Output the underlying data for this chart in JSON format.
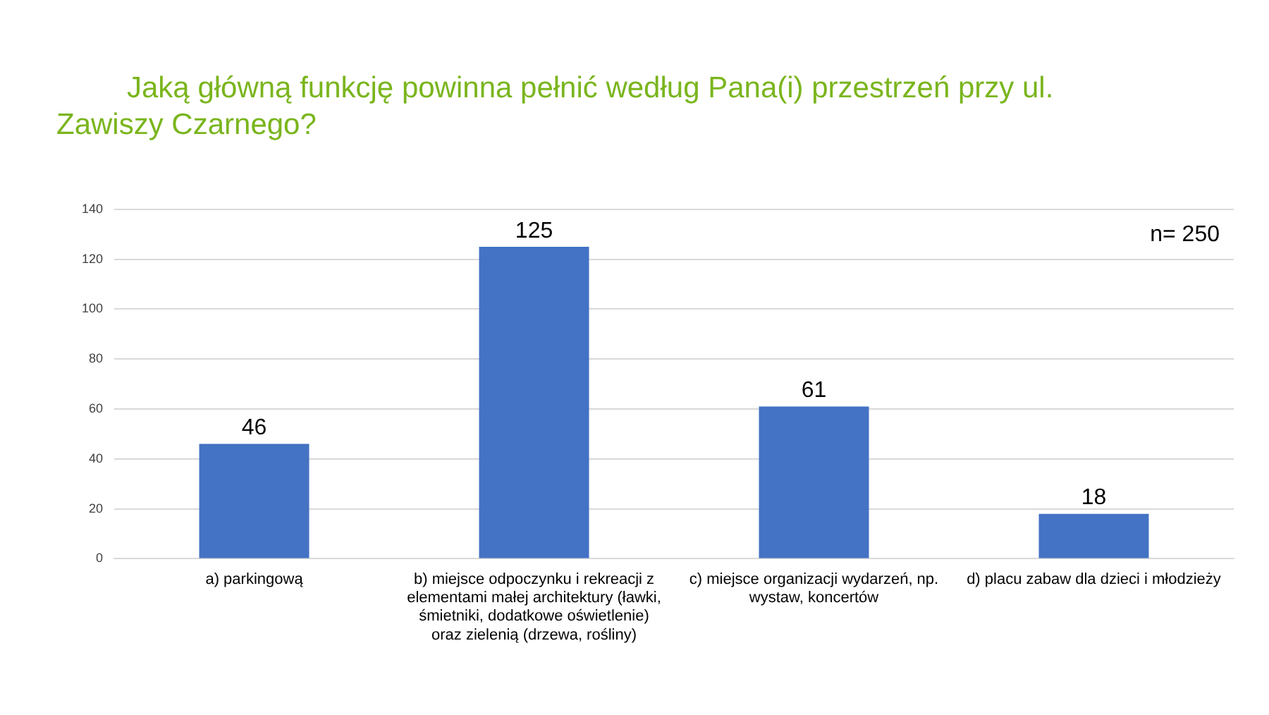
{
  "chart_data": {
    "type": "bar",
    "title": "Jaką główną funkcję powinna pełnić według Pana(i) przestrzeń przy ul. Zawiszy Czarnego?",
    "categories": [
      "a) parkingową",
      "b) miejsce odpoczynku i rekreacji z elementami małej architektury (ławki, śmietniki, dodatkowe oświetlenie) oraz zielenią (drzewa, rośliny)",
      "c) miejsce organizacji wydarzeń, np. wystaw, koncertów",
      "d) placu zabaw dla dzieci i młodzieży"
    ],
    "values": [
      46,
      125,
      61,
      18
    ],
    "color": "#4472c4",
    "ylim": [
      0,
      140
    ],
    "yticks": [
      0,
      20,
      40,
      60,
      80,
      100,
      120,
      140
    ],
    "grid": "y",
    "data_labels": true,
    "annotations": [
      "n= 250"
    ]
  }
}
